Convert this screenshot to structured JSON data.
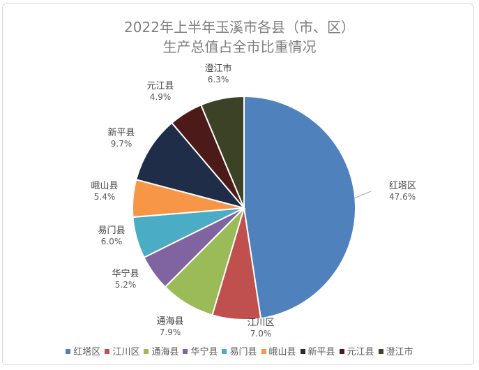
{
  "chart_data": {
    "type": "pie",
    "title_line1": "2022年上半年玉溪市各县（市、区）",
    "title_line2": "生产总值占全市比重情况",
    "categories": [
      "红塔区",
      "江川区",
      "通海县",
      "华宁县",
      "易门县",
      "峨山县",
      "新平县",
      "元江县",
      "澄江市"
    ],
    "values": [
      47.6,
      7.0,
      7.9,
      5.2,
      6.0,
      5.4,
      9.7,
      4.9,
      6.3
    ],
    "value_labels": [
      "47.6%",
      "7.0%",
      "7.9%",
      "5.2%",
      "6.0%",
      "5.4%",
      "9.7%",
      "4.9%",
      "6.3%"
    ],
    "colors": [
      "#4f81bd",
      "#c0504d",
      "#9bbb59",
      "#8064a2",
      "#4bacc6",
      "#f79646",
      "#1f2d48",
      "#4d1a1a",
      "#3b4226"
    ],
    "legend_position": "bottom"
  }
}
